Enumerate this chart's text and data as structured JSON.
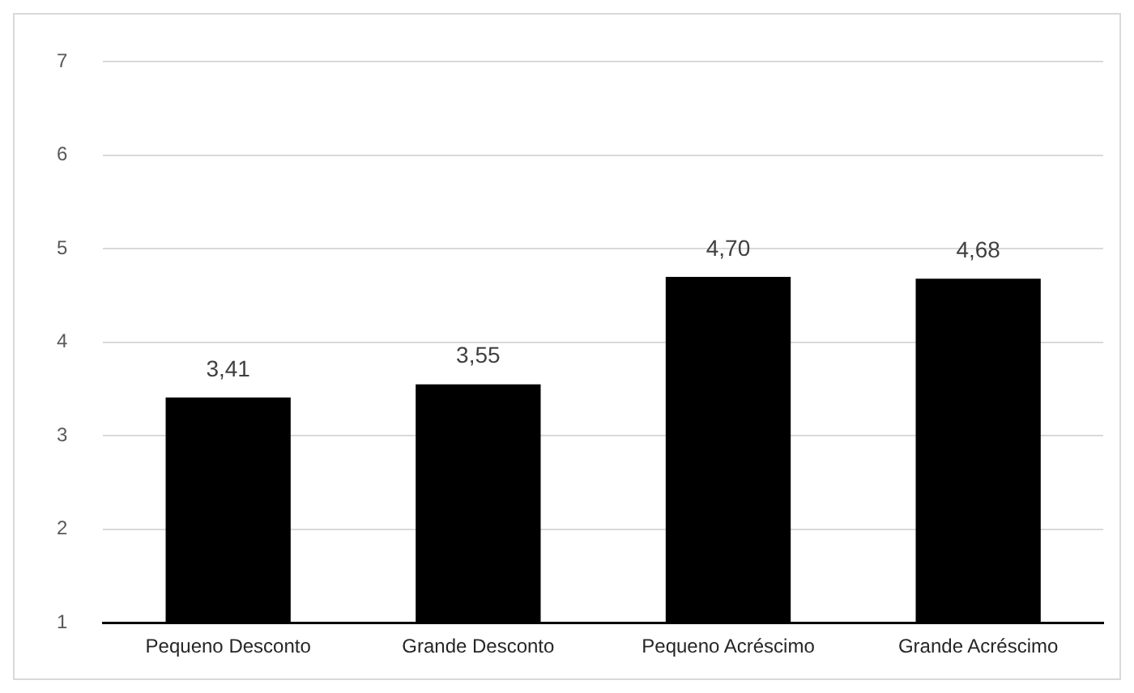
{
  "chart_data": {
    "type": "bar",
    "categories": [
      "Pequeno Desconto",
      "Grande Desconto",
      "Pequeno Acréscimo",
      "Grande Acréscimo"
    ],
    "values": [
      3.41,
      3.55,
      4.7,
      4.68
    ],
    "color": "#000000",
    "value_labels": [
      "3,41",
      "3,55",
      "4,70",
      "4,68"
    ],
    "ylim": [
      1,
      7
    ],
    "yticks": [
      1,
      2,
      3,
      4,
      5,
      6,
      7
    ],
    "grid": "y",
    "legend": false
  }
}
